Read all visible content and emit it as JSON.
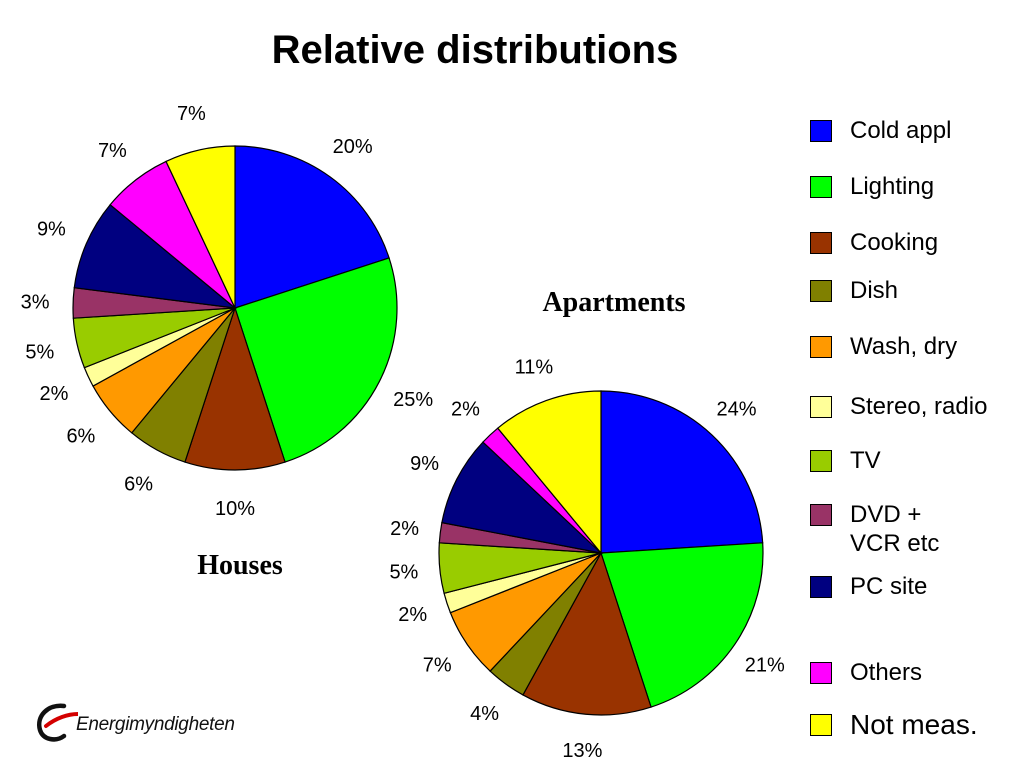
{
  "title": "Relative distributions",
  "logo_text": "Energimyndigheten",
  "chart_data": [
    {
      "type": "pie",
      "title": "Houses",
      "start_angle_deg": 0,
      "direction": "clockwise",
      "categories": [
        "Cold appl",
        "Lighting",
        "Cooking",
        "Dish",
        "Wash, dry",
        "Stereo, radio",
        "TV",
        "DVD + VCR etc",
        "PC site",
        "Others",
        "Not meas."
      ],
      "values": [
        20,
        25,
        10,
        6,
        6,
        2,
        5,
        3,
        9,
        7,
        7
      ],
      "labels": [
        "20%",
        "25%",
        "10%",
        "6%",
        "6%",
        "2%",
        "5%",
        "3%",
        "9%",
        "7%",
        "7%"
      ]
    },
    {
      "type": "pie",
      "title": "Apartments",
      "start_angle_deg": 0,
      "direction": "clockwise",
      "categories": [
        "Cold appl",
        "Lighting",
        "Cooking",
        "Dish",
        "Wash, dry",
        "Stereo, radio",
        "TV",
        "DVD + VCR etc",
        "PC site",
        "Others",
        "Not meas."
      ],
      "values": [
        24,
        21,
        13,
        4,
        7,
        2,
        5,
        2,
        9,
        2,
        11
      ],
      "labels": [
        "24%",
        "21%",
        "13%",
        "4%",
        "7%",
        "2%",
        "5%",
        "2%",
        "9%",
        "2%",
        "11%"
      ]
    }
  ],
  "legend": {
    "placement": "right",
    "items": [
      {
        "label": "Cold appl",
        "color": "#0000FF"
      },
      {
        "label": "Lighting",
        "color": "#00FF00"
      },
      {
        "label": "Cooking",
        "color": "#993300"
      },
      {
        "label": "Dish",
        "color": "#808000"
      },
      {
        "label": "Wash, dry",
        "color": "#FF9900"
      },
      {
        "label": "Stereo, radio",
        "color": "#FFFF99"
      },
      {
        "label": "TV",
        "color": "#99CC00"
      },
      {
        "label": "DVD +\nVCR etc",
        "color": "#993366"
      },
      {
        "label": "PC site",
        "color": "#000080"
      },
      {
        "label": "Others",
        "color": "#FF00FF"
      },
      {
        "label": "Not meas.",
        "color": "#FFFF00"
      }
    ]
  }
}
